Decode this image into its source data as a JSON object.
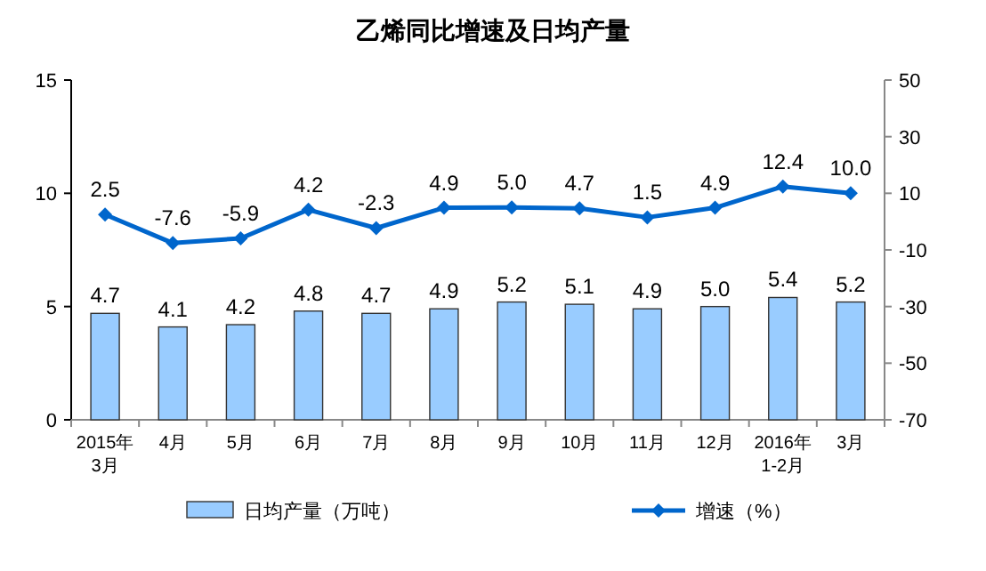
{
  "chart_data": {
    "type": "bar",
    "title": "乙烯同比增速及日均产量",
    "categories": [
      "2015年\n3月",
      "4月",
      "5月",
      "6月",
      "7月",
      "8月",
      "9月",
      "10月",
      "11月",
      "12月",
      "2016年\n1-2月",
      "3月"
    ],
    "series": [
      {
        "name": "日均产量（万吨）",
        "color": "#99ccff",
        "values": [
          4.7,
          4.1,
          4.2,
          4.8,
          4.7,
          4.9,
          5.2,
          5.1,
          4.9,
          5.0,
          5.4,
          5.2
        ],
        "value_labels": [
          "4.7",
          "4.1",
          "4.2",
          "4.8",
          "4.7",
          "4.9",
          "5.2",
          "5.1",
          "4.9",
          "5.0",
          "5.4",
          "5.2"
        ]
      },
      {
        "name": "增速（%）",
        "type": "line",
        "axis": "y2",
        "color": "#0066cc",
        "marker": "diamond",
        "values": [
          2.5,
          -7.6,
          -5.9,
          4.2,
          -2.3,
          4.9,
          5.0,
          4.7,
          1.5,
          4.9,
          12.4,
          10.0
        ],
        "value_labels": [
          "2.5",
          "-7.6",
          "-5.9",
          "4.2",
          "-2.3",
          "4.9",
          "5.0",
          "4.7",
          "1.5",
          "4.9",
          "12.4",
          "10.0"
        ]
      }
    ],
    "ylim": [
      0,
      15
    ],
    "yticks": [
      0,
      5,
      10,
      15
    ],
    "y2lim": [
      -70,
      50
    ],
    "y2ticks": [
      -70,
      -50,
      -30,
      -10,
      10,
      30,
      50
    ],
    "legend": "bottom",
    "grid": false
  }
}
